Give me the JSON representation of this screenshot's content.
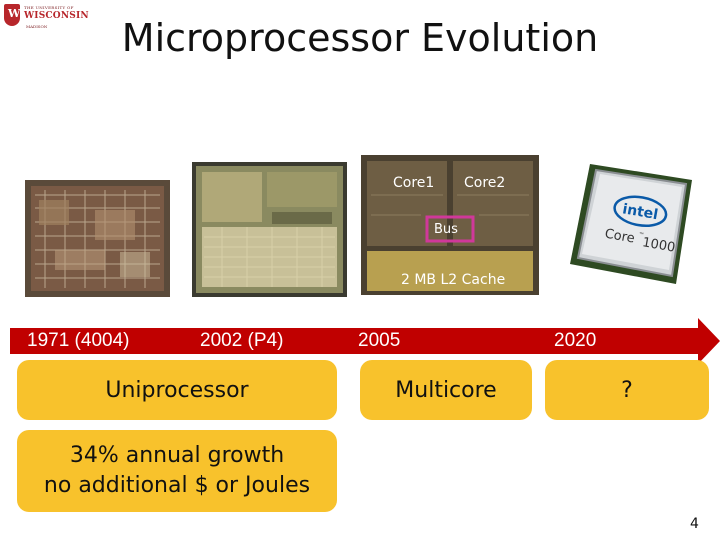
{
  "logo": {
    "top_text": "THE UNIVERSITY OF",
    "name": "WISCONSIN",
    "city": "MADISON",
    "crest_letter": "W",
    "color": "#b7262b"
  },
  "title": "Microprocessor Evolution",
  "images": {
    "chip_4004": "4004-die-photo",
    "chip_p4": "pentium4-die-photo",
    "chip_multicore": {
      "core1": "Core1",
      "core2": "Core2",
      "bus": "Bus",
      "cache": "2 MB L2 Cache"
    },
    "chip_intel": {
      "brand": "intel",
      "model": "Core",
      "tm": "™",
      "number": "1000"
    }
  },
  "timeline": {
    "labels": [
      "1971 (4004)",
      "2002 (P4)",
      "2005",
      "2020"
    ],
    "color": "#c00000"
  },
  "boxes": {
    "uniprocessor": "Uniprocessor",
    "multicore": "Multicore",
    "future": "?",
    "growth_line1": "34% annual growth",
    "growth_line2": "no additional $ or Joules",
    "color": "#f8c22c"
  },
  "page_number": "4"
}
